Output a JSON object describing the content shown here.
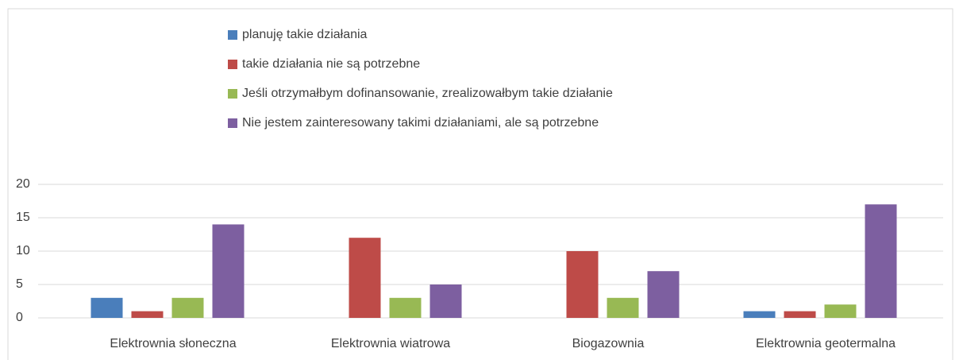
{
  "chart_data": {
    "type": "bar",
    "categories": [
      "Elektrownia słoneczna",
      "Elektrownia wiatrowa",
      "Biogazownia",
      "Elektrownia geotermalna"
    ],
    "series": [
      {
        "name": "planuję takie działania",
        "color": "#4a7ebb",
        "values": [
          3,
          0,
          0,
          1
        ]
      },
      {
        "name": "takie działania nie są potrzebne",
        "color": "#be4b48",
        "values": [
          1,
          12,
          10,
          1
        ]
      },
      {
        "name": "Jeśli otrzymałbym dofinansowanie, zrealizowałbym takie działanie",
        "color": "#98b954",
        "values": [
          3,
          3,
          3,
          2
        ]
      },
      {
        "name": "Nie jestem zainteresowany takimi działaniami, ale są potrzebne",
        "color": "#7d5fa0",
        "values": [
          14,
          5,
          7,
          17
        ]
      }
    ],
    "ylim": [
      0,
      20
    ],
    "yticks": [
      0,
      5,
      10,
      15,
      20
    ],
    "grid": true,
    "legend": "top"
  }
}
